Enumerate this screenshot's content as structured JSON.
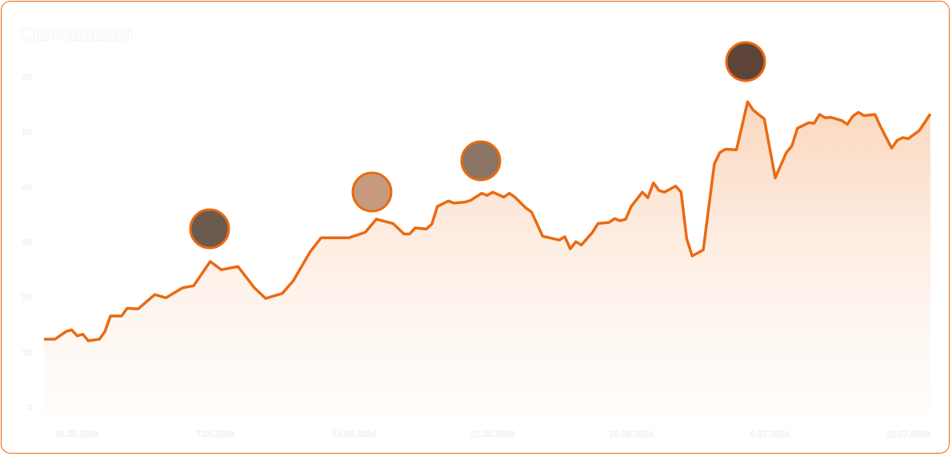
{
  "chart_data": {
    "type": "line",
    "title": "Скачивания",
    "color": "#ea6a12",
    "x": [
      0,
      2,
      4,
      5,
      6,
      7,
      8,
      10,
      11,
      12,
      14,
      15,
      17,
      20,
      22,
      25,
      27,
      30,
      32,
      35,
      38,
      40,
      43,
      45,
      48,
      50,
      55,
      58,
      60,
      63,
      65,
      66,
      67,
      69,
      70,
      71,
      73,
      74,
      76,
      77,
      79,
      80,
      81,
      83,
      84,
      85,
      87,
      88,
      90,
      93,
      94,
      95,
      96,
      97,
      99,
      100,
      102,
      103,
      104,
      105,
      106,
      108,
      109,
      110,
      111,
      112,
      114,
      115,
      116,
      117,
      119,
      121,
      122,
      123,
      125,
      127,
      128,
      130,
      132,
      134,
      135,
      136,
      138,
      139,
      140,
      141,
      142,
      144,
      145,
      146,
      147,
      148,
      150,
      151,
      153,
      154,
      155,
      156,
      158,
      160
    ],
    "values": [
      12.5,
      12.5,
      13.9,
      14.2,
      13.1,
      13.4,
      12.2,
      12.5,
      13.9,
      16.7,
      16.7,
      18.1,
      18.0,
      20.6,
      20.0,
      21.8,
      22.2,
      26.6,
      25.1,
      25.7,
      21.8,
      19.9,
      20.8,
      23.1,
      28.3,
      30.9,
      30.9,
      31.9,
      34.3,
      33.5,
      31.6,
      31.6,
      32.7,
      32.5,
      33.4,
      36.6,
      37.6,
      37.2,
      37.4,
      37.7,
      39.0,
      38.6,
      39.2,
      38.3,
      39.0,
      38.3,
      36.3,
      35.6,
      31.2,
      30.5,
      31.1,
      28.9,
      30.2,
      29.6,
      31.9,
      33.5,
      33.7,
      34.4,
      34.0,
      34.3,
      36.6,
      39.2,
      38.2,
      40.9,
      39.5,
      39.2,
      40.3,
      39.2,
      30.8,
      27.6,
      28.7,
      44.3,
      46.4,
      47.0,
      46.9,
      55.6,
      54.1,
      52.5,
      41.8,
      46.4,
      47.6,
      50.8,
      51.8,
      51.7,
      53.3,
      52.7,
      52.8,
      52.2,
      51.5,
      53.0,
      53.7,
      53.1,
      53.3,
      51.1,
      47.2,
      48.6,
      49.1,
      48.9,
      50.4,
      53.4
    ],
    "xlim": [
      0,
      160
    ],
    "xticks": [
      {
        "value": 6,
        "label": "31.05.2024"
      },
      {
        "value": 31,
        "label": "7.06.2024"
      },
      {
        "value": 56,
        "label": "14.06.2024"
      },
      {
        "value": 81,
        "label": "21.06.2024"
      },
      {
        "value": 106,
        "label": "28.06.2024"
      },
      {
        "value": 131,
        "label": "5.07.2024"
      },
      {
        "value": 156,
        "label": "12.07.2024"
      }
    ],
    "ylim": [
      0,
      60
    ],
    "yticks": [
      0,
      10,
      20,
      30,
      40,
      50,
      60
    ]
  }
}
